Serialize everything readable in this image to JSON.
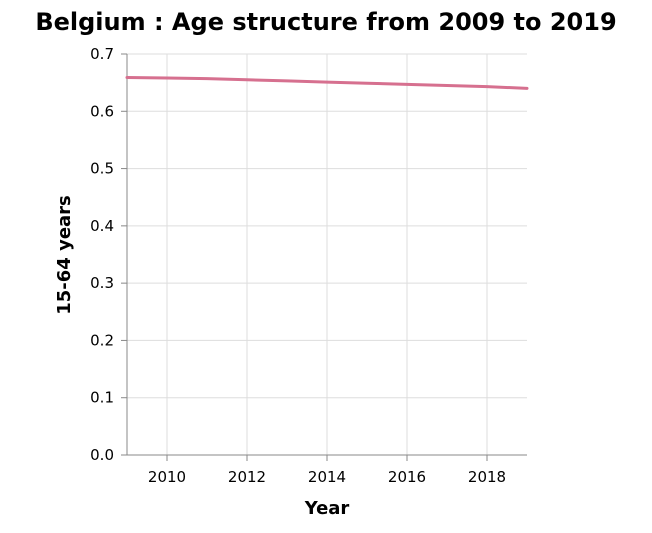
{
  "chart_data": {
    "type": "line",
    "title": "Belgium : Age structure from 2009 to 2019",
    "xlabel": "Year",
    "ylabel": "15-64 years",
    "xlim": [
      2009,
      2019
    ],
    "ylim": [
      0,
      0.7
    ],
    "xticks": [
      "2010",
      "2012",
      "2014",
      "2016",
      "2018"
    ],
    "yticks": [
      "0.0",
      "0.1",
      "0.2",
      "0.3",
      "0.4",
      "0.5",
      "0.6",
      "0.7"
    ],
    "grid": true,
    "series": [
      {
        "color": "#d6708f",
        "x": [
          2009,
          2010,
          2011,
          2012,
          2013,
          2014,
          2015,
          2016,
          2017,
          2018,
          2019
        ],
        "y": [
          0.659,
          0.658,
          0.657,
          0.655,
          0.653,
          0.651,
          0.649,
          0.647,
          0.645,
          0.643,
          0.64
        ]
      }
    ]
  }
}
